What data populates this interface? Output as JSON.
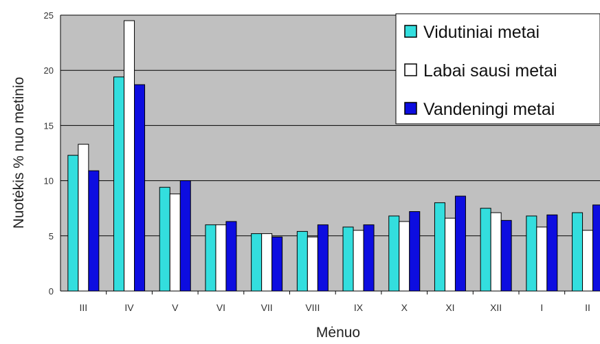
{
  "chart_data": {
    "type": "bar",
    "title": "",
    "xlabel": "Mėnuo",
    "ylabel": "Nuotėkis %  nuo metinio",
    "ylim": [
      0,
      25
    ],
    "yticks": [
      "0",
      "5",
      "10",
      "15",
      "20",
      "25"
    ],
    "categories": [
      "III",
      "IV",
      "V",
      "VI",
      "VII",
      "VIII",
      "IX",
      "X",
      "XI",
      "XII",
      "I",
      "II"
    ],
    "series": [
      {
        "name": "Vidutiniai metai",
        "color": "#33dede",
        "values": [
          12.3,
          19.4,
          9.4,
          6.0,
          5.2,
          5.4,
          5.8,
          6.8,
          8.0,
          7.5,
          6.8,
          7.1
        ]
      },
      {
        "name": "Labai sausi metai",
        "color": "#ffffff",
        "values": [
          13.3,
          24.5,
          8.8,
          6.0,
          5.2,
          4.9,
          5.5,
          6.3,
          6.6,
          7.1,
          5.8,
          5.5
        ]
      },
      {
        "name": "Vandeningi metai",
        "color": "#0d0de0",
        "values": [
          10.9,
          18.7,
          10.0,
          6.3,
          4.9,
          6.0,
          6.0,
          7.2,
          8.6,
          6.4,
          6.9,
          7.8
        ]
      }
    ],
    "grid": true,
    "plot_background": "#c0c0c0",
    "legend_position": "top-right"
  }
}
